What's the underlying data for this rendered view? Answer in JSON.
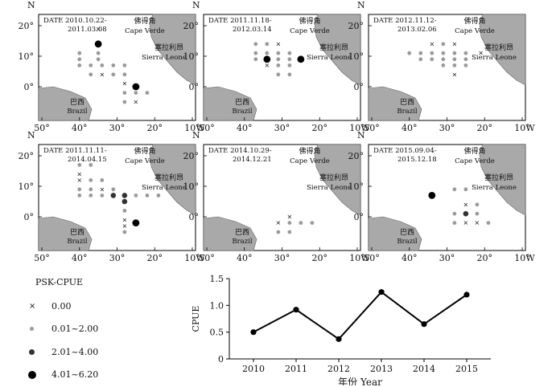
{
  "labels": {
    "cape_verde_cn": "佛得角",
    "cape_verde_en": "Cape Verde",
    "sierra_leone_cn": "塞拉利昂",
    "sierra_leone_en": "Sierra Leone",
    "brazil_cn": "巴西",
    "brazil_en": "Brazil",
    "north": "N",
    "west": "W",
    "lon_ticks": [
      "50°",
      "40°",
      "30°",
      "20°",
      "10°"
    ],
    "lat_ticks": [
      "20°",
      "10°",
      "0°"
    ]
  },
  "panels": [
    {
      "date1": "DATE 2010.10.22-",
      "date2": "2011.03.08",
      "show_sierra": true
    },
    {
      "date1": "DATE 2011.11.18-",
      "date2": "2012.03.14",
      "show_sierra": true
    },
    {
      "date1": "DATE 2012.11.12-",
      "date2": "2013.02.06",
      "show_sierra": true
    },
    {
      "date1": "DATE 2011.11.11-",
      "date2": "2014.04.15",
      "show_sierra": true
    },
    {
      "date1": "DATE 2014.10.29-",
      "date2": "2014.12.21",
      "show_sierra": true
    },
    {
      "date1": "DATE 2015.09.04-",
      "date2": "2015.12.18",
      "show_sierra": true
    }
  ],
  "legend": {
    "title": "PSK-CPUE",
    "items": [
      {
        "label": "0.00",
        "symbol": "x"
      },
      {
        "label": "0.01~2.00",
        "symbol": "small-gray"
      },
      {
        "label": "2.01~4.00",
        "symbol": "medium-dark"
      },
      {
        "label": "4.01~6.20",
        "symbol": "large-black"
      }
    ]
  },
  "chart_data": {
    "type": "line",
    "x": [
      2010,
      2011,
      2012,
      2013,
      2014,
      2015
    ],
    "y": [
      0.5,
      0.92,
      0.37,
      1.25,
      0.65,
      1.2
    ],
    "xlabel": "年份 Year",
    "ylabel": "CPUE",
    "ylim": [
      0,
      1.5
    ],
    "yticks": [
      "0",
      "0.5",
      "1.0",
      "1.5"
    ],
    "xticks": [
      "2010",
      "2011",
      "2012",
      "2013",
      "2014",
      "2015"
    ],
    "grid": false,
    "marker": "filled-circle"
  },
  "colors": {
    "land": "#a9a9a9",
    "point_gray": "#9a9a9a",
    "point_dark": "#333333",
    "point_black": "#000000",
    "line": "#000000"
  }
}
